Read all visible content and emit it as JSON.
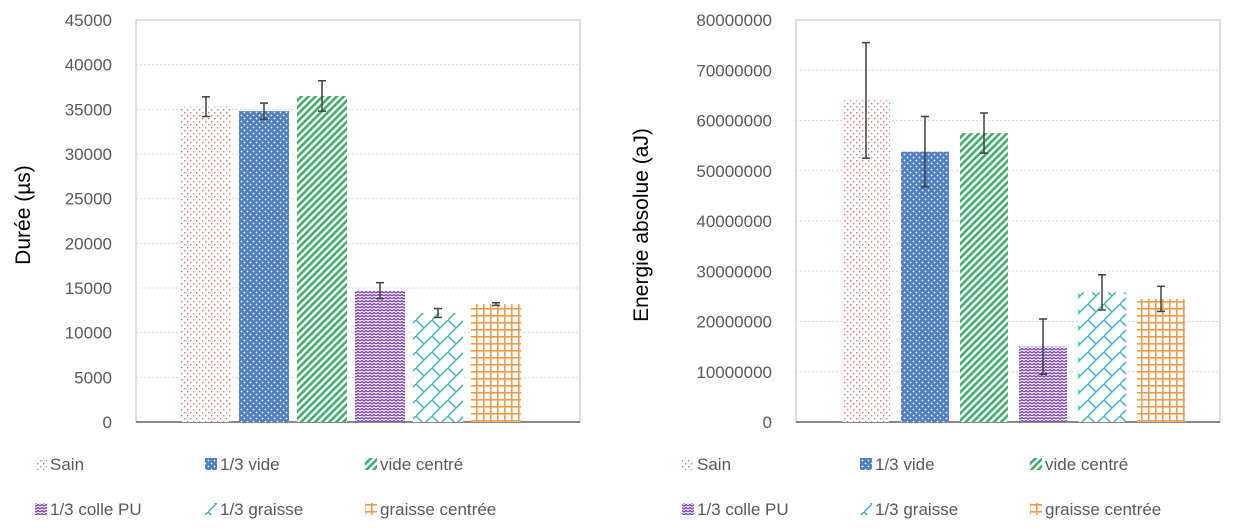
{
  "chart_data": [
    {
      "type": "bar",
      "title": "",
      "xlabel": "",
      "ylabel": "Durée (µs)",
      "ylim": [
        0,
        45000
      ],
      "ytick_step": 5000,
      "grid": true,
      "legend_position": "bottom",
      "categories": [
        "Sain",
        "1/3 vide",
        "vide centré",
        "1/3 colle PU",
        "1/3 graisse",
        "graisse centrée"
      ],
      "series": [
        {
          "name": "Sain",
          "value": 35300,
          "error": 1100
        },
        {
          "name": "1/3 vide",
          "value": 34800,
          "error": 900
        },
        {
          "name": "vide centré",
          "value": 36500,
          "error": 1700
        },
        {
          "name": "1/3 colle PU",
          "value": 14700,
          "error": 900
        },
        {
          "name": "1/3 graisse",
          "value": 12200,
          "error": 500
        },
        {
          "name": "graisse centrée",
          "value": 13200,
          "error": 150
        }
      ]
    },
    {
      "type": "bar",
      "title": "",
      "xlabel": "",
      "ylabel": "Energie absolue (aJ)",
      "ylim": [
        0,
        80000000
      ],
      "ytick_step": 10000000,
      "grid": true,
      "legend_position": "bottom",
      "categories": [
        "Sain",
        "1/3 vide",
        "vide centré",
        "1/3 colle PU",
        "1/3 graisse",
        "graisse centrée"
      ],
      "series": [
        {
          "name": "Sain",
          "value": 64000000,
          "error": 11500000
        },
        {
          "name": "1/3 vide",
          "value": 53800000,
          "error": 7000000
        },
        {
          "name": "vide centré",
          "value": 57500000,
          "error": 4000000
        },
        {
          "name": "1/3 colle PU",
          "value": 15000000,
          "error": 5500000
        },
        {
          "name": "1/3 graisse",
          "value": 25800000,
          "error": 3500000
        },
        {
          "name": "graisse centrée",
          "value": 24500000,
          "error": 2500000
        }
      ]
    }
  ],
  "colors": {
    "Sain": "#e0706b",
    "1/3 vide": "#4e7fbf",
    "vide centré": "#3fae6a",
    "1/3 colle PU": "#7b3fb0",
    "1/3 graisse": "#36b3c2",
    "graisse centrée": "#f2994a",
    "axis": "#bfbfbf",
    "grid": "#d9d9d9",
    "text": "#595959",
    "errorbar": "#404040"
  }
}
